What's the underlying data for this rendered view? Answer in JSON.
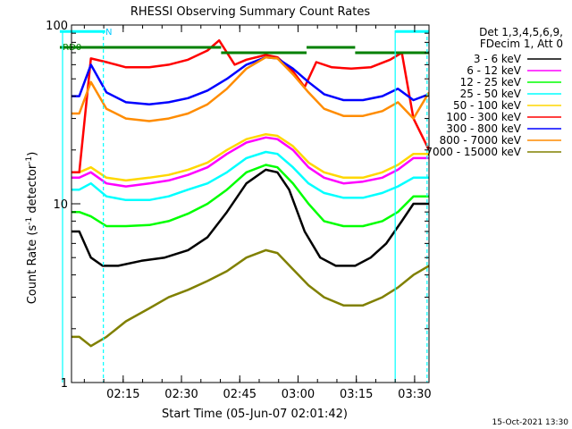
{
  "chart_data": {
    "type": "line",
    "title": "RHESSI Observing Summary Count Rates",
    "xlabel": "Start Time (05-Jun-07 02:01:42)",
    "ylabel_main": "Count Rate (s",
    "ylabel_sup": "-1",
    "ylabel_rest": " detector",
    "ylabel_end": ")",
    "y_scale": "log",
    "ylim": [
      1,
      100
    ],
    "xlim": [
      0,
      92
    ],
    "x_ticks": [
      {
        "x": 13.3,
        "label": "02:15"
      },
      {
        "x": 28.3,
        "label": "02:30"
      },
      {
        "x": 43.3,
        "label": "02:45"
      },
      {
        "x": 58.3,
        "label": "03:00"
      },
      {
        "x": 73.3,
        "label": "03:15"
      },
      {
        "x": 88.3,
        "label": "03:30"
      }
    ],
    "y_ticks": [
      {
        "y": 1,
        "label": "1"
      },
      {
        "y": 10,
        "label": "10"
      },
      {
        "y": 100,
        "label": "100"
      }
    ],
    "legend_header": [
      "Det 1,3,4,5,6,9,",
      "FDecim 1, Att 0"
    ],
    "legend_position": "right",
    "series": [
      {
        "name": "3 - 6 keV",
        "color": "#000000",
        "points": [
          [
            0,
            7
          ],
          [
            2,
            7
          ],
          [
            5,
            5
          ],
          [
            8,
            4.5
          ],
          [
            12,
            4.5
          ],
          [
            18,
            4.8
          ],
          [
            24,
            5
          ],
          [
            30,
            5.5
          ],
          [
            35,
            6.5
          ],
          [
            40,
            9
          ],
          [
            45,
            13
          ],
          [
            50,
            15.5
          ],
          [
            53,
            15
          ],
          [
            56,
            12
          ],
          [
            60,
            7
          ],
          [
            64,
            5
          ],
          [
            68,
            4.5
          ],
          [
            73,
            4.5
          ],
          [
            77,
            5
          ],
          [
            81,
            6
          ],
          [
            85,
            8
          ],
          [
            88,
            10
          ],
          [
            92,
            10
          ]
        ]
      },
      {
        "name": "6 - 12 keV",
        "color": "#ff00ff",
        "points": [
          [
            0,
            14
          ],
          [
            2,
            14
          ],
          [
            5,
            15
          ],
          [
            9,
            13
          ],
          [
            14,
            12.5
          ],
          [
            20,
            13
          ],
          [
            25,
            13.5
          ],
          [
            30,
            14.5
          ],
          [
            35,
            16
          ],
          [
            40,
            19
          ],
          [
            45,
            22
          ],
          [
            50,
            23.5
          ],
          [
            53,
            23
          ],
          [
            57,
            20
          ],
          [
            61,
            16
          ],
          [
            65,
            14
          ],
          [
            70,
            13
          ],
          [
            75,
            13.3
          ],
          [
            80,
            14
          ],
          [
            84,
            15.5
          ],
          [
            88,
            18
          ],
          [
            92,
            18
          ]
        ]
      },
      {
        "name": "12 - 25 keV",
        "color": "#00ff00",
        "points": [
          [
            0,
            9
          ],
          [
            2,
            9
          ],
          [
            5,
            8.5
          ],
          [
            9,
            7.5
          ],
          [
            14,
            7.5
          ],
          [
            20,
            7.6
          ],
          [
            25,
            8
          ],
          [
            30,
            8.8
          ],
          [
            35,
            10
          ],
          [
            40,
            12
          ],
          [
            45,
            15
          ],
          [
            50,
            16.5
          ],
          [
            53,
            16
          ],
          [
            57,
            13
          ],
          [
            61,
            10
          ],
          [
            65,
            8
          ],
          [
            70,
            7.5
          ],
          [
            75,
            7.5
          ],
          [
            80,
            8
          ],
          [
            84,
            9
          ],
          [
            88,
            11
          ],
          [
            92,
            11
          ]
        ]
      },
      {
        "name": "25 - 50 keV",
        "color": "#00ffff",
        "points": [
          [
            0,
            12
          ],
          [
            2,
            12
          ],
          [
            5,
            13
          ],
          [
            9,
            11
          ],
          [
            14,
            10.5
          ],
          [
            20,
            10.5
          ],
          [
            25,
            11
          ],
          [
            30,
            12
          ],
          [
            35,
            13
          ],
          [
            40,
            15
          ],
          [
            45,
            18
          ],
          [
            50,
            19.5
          ],
          [
            53,
            19
          ],
          [
            57,
            16
          ],
          [
            61,
            13
          ],
          [
            65,
            11.5
          ],
          [
            70,
            10.8
          ],
          [
            75,
            10.8
          ],
          [
            80,
            11.5
          ],
          [
            84,
            12.5
          ],
          [
            88,
            14
          ],
          [
            92,
            14
          ]
        ]
      },
      {
        "name": "50 - 100 keV",
        "color": "#ffd700",
        "points": [
          [
            0,
            15
          ],
          [
            2,
            15
          ],
          [
            5,
            16
          ],
          [
            9,
            14
          ],
          [
            14,
            13.5
          ],
          [
            20,
            14
          ],
          [
            25,
            14.5
          ],
          [
            30,
            15.5
          ],
          [
            35,
            17
          ],
          [
            40,
            20
          ],
          [
            45,
            23
          ],
          [
            50,
            24.5
          ],
          [
            53,
            24
          ],
          [
            57,
            21
          ],
          [
            61,
            17
          ],
          [
            65,
            15
          ],
          [
            70,
            14
          ],
          [
            75,
            14
          ],
          [
            80,
            15
          ],
          [
            84,
            16.5
          ],
          [
            88,
            19
          ],
          [
            92,
            19
          ]
        ]
      },
      {
        "name": "100 - 300 keV",
        "color": "#ff0000",
        "points": [
          [
            0,
            15
          ],
          [
            2,
            15
          ],
          [
            5,
            65
          ],
          [
            9,
            62
          ],
          [
            14,
            58
          ],
          [
            20,
            58
          ],
          [
            25,
            60
          ],
          [
            30,
            64
          ],
          [
            35,
            72
          ],
          [
            38,
            82
          ],
          [
            42,
            60
          ],
          [
            45,
            64
          ],
          [
            50,
            68
          ],
          [
            53,
            66
          ],
          [
            57,
            55
          ],
          [
            60,
            45
          ],
          [
            63,
            62
          ],
          [
            67,
            58
          ],
          [
            72,
            57
          ],
          [
            77,
            58
          ],
          [
            82,
            64
          ],
          [
            85,
            70
          ],
          [
            88,
            30
          ],
          [
            92,
            20
          ]
        ]
      },
      {
        "name": "300 - 800 keV",
        "color": "#0000ff",
        "points": [
          [
            0,
            40
          ],
          [
            2,
            40
          ],
          [
            5,
            60
          ],
          [
            9,
            42
          ],
          [
            14,
            37
          ],
          [
            20,
            36
          ],
          [
            25,
            37
          ],
          [
            30,
            39
          ],
          [
            35,
            43
          ],
          [
            40,
            50
          ],
          [
            45,
            60
          ],
          [
            50,
            66
          ],
          [
            53,
            65
          ],
          [
            57,
            57
          ],
          [
            61,
            48
          ],
          [
            65,
            41
          ],
          [
            70,
            38
          ],
          [
            75,
            38
          ],
          [
            80,
            40
          ],
          [
            84,
            44
          ],
          [
            88,
            38
          ],
          [
            92,
            41
          ]
        ]
      },
      {
        "name": "800 - 7000 keV",
        "color": "#ff8c00",
        "points": [
          [
            0,
            32
          ],
          [
            2,
            32
          ],
          [
            5,
            48
          ],
          [
            9,
            34
          ],
          [
            14,
            30
          ],
          [
            20,
            29
          ],
          [
            25,
            30
          ],
          [
            30,
            32
          ],
          [
            35,
            36
          ],
          [
            40,
            44
          ],
          [
            45,
            57
          ],
          [
            50,
            66
          ],
          [
            53,
            65
          ],
          [
            57,
            53
          ],
          [
            61,
            42
          ],
          [
            65,
            34
          ],
          [
            70,
            31
          ],
          [
            75,
            31
          ],
          [
            80,
            33
          ],
          [
            84,
            37
          ],
          [
            88,
            30
          ],
          [
            92,
            42
          ]
        ]
      },
      {
        "name": "7000 - 15000 keV",
        "color": "#808000",
        "points": [
          [
            0,
            1.8
          ],
          [
            2,
            1.8
          ],
          [
            5,
            1.6
          ],
          [
            9,
            1.8
          ],
          [
            14,
            2.2
          ],
          [
            20,
            2.6
          ],
          [
            25,
            3
          ],
          [
            30,
            3.3
          ],
          [
            35,
            3.7
          ],
          [
            40,
            4.2
          ],
          [
            45,
            5
          ],
          [
            50,
            5.5
          ],
          [
            53,
            5.3
          ],
          [
            57,
            4.3
          ],
          [
            61,
            3.5
          ],
          [
            65,
            3
          ],
          [
            70,
            2.7
          ],
          [
            75,
            2.7
          ],
          [
            80,
            3
          ],
          [
            84,
            3.4
          ],
          [
            88,
            4
          ],
          [
            92,
            4.5
          ]
        ]
      }
    ],
    "annotations": [
      {
        "text": "RD0",
        "x": 0.5,
        "y": 76
      },
      {
        "text": "N",
        "x": 11.5,
        "y": 92
      }
    ],
    "status_bars": [
      {
        "color": "#008000",
        "x0": -3,
        "x1": 38.5,
        "y": 75
      },
      {
        "color": "#008000",
        "x0": 38.5,
        "x1": 60.5,
        "y": 70
      },
      {
        "color": "#008000",
        "x0": 60.5,
        "x1": 73,
        "y": 75
      },
      {
        "color": "#008000",
        "x0": 73,
        "x1": 92,
        "y": 70
      },
      {
        "color": "#00ffff",
        "x0": -3,
        "x1": 8.7,
        "y": 92
      },
      {
        "color": "#00ffff",
        "x0": 83.3,
        "x1": 92,
        "y": 92
      }
    ],
    "vertical_markers": [
      {
        "color": "#00ffff",
        "x": -2.3,
        "style": "solid"
      },
      {
        "color": "#00ffff",
        "x": 8.2,
        "style": "dashed"
      },
      {
        "color": "#00ffff",
        "x": 83.3,
        "style": "solid"
      },
      {
        "color": "#00ffff",
        "x": 91.5,
        "style": "dashed"
      }
    ]
  },
  "footer": {
    "timestamp": "15-Oct-2021 13:30"
  }
}
